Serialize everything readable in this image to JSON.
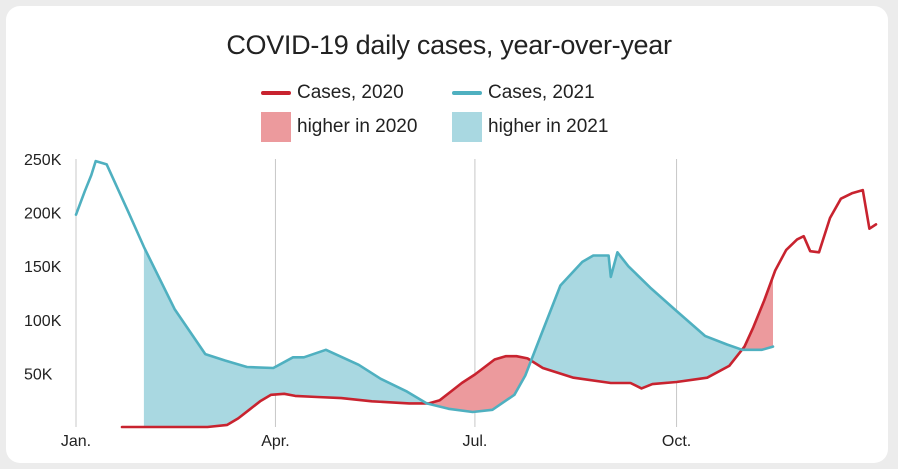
{
  "chart_data": {
    "type": "area",
    "title": "COVID-19 daily cases, year-over-year",
    "xlabel": "",
    "ylabel": "",
    "x_ticks": [
      "Jan.",
      "Apr.",
      "Jul.",
      "Oct."
    ],
    "y_ticks": [
      "50K",
      "100K",
      "150K",
      "200K",
      "250K"
    ],
    "ylim": [
      0,
      250000
    ],
    "grid": "vertical lines at quarter starts",
    "legend_position": "top-center",
    "legend": {
      "line_2020": "Cases, 2020",
      "line_2021": "Cases, 2021",
      "fill_2020": "higher in 2020",
      "fill_2021": "higher in 2021"
    },
    "colors": {
      "series_2020": "#c8232f",
      "series_2021": "#4fb0c0",
      "fill_2020": "#ec9a9d",
      "fill_2021": "#a9d8e1"
    },
    "series": [
      {
        "name": "Cases, 2020",
        "x": [
          "2020-01-22",
          "2020-02-01",
          "2020-02-15",
          "2020-03-01",
          "2020-03-10",
          "2020-03-15",
          "2020-03-20",
          "2020-03-25",
          "2020-03-30",
          "2020-04-05",
          "2020-04-10",
          "2020-04-20",
          "2020-05-01",
          "2020-05-15",
          "2020-06-01",
          "2020-06-10",
          "2020-06-15",
          "2020-06-20",
          "2020-06-25",
          "2020-07-01",
          "2020-07-10",
          "2020-07-15",
          "2020-07-20",
          "2020-07-25",
          "2020-08-01",
          "2020-08-15",
          "2020-09-01",
          "2020-09-10",
          "2020-09-15",
          "2020-09-20",
          "2020-10-01",
          "2020-10-15",
          "2020-10-25",
          "2020-11-01",
          "2020-11-05",
          "2020-11-10",
          "2020-11-15",
          "2020-11-20",
          "2020-11-25",
          "2020-11-28",
          "2020-12-01",
          "2020-12-05",
          "2020-12-10",
          "2020-12-15",
          "2020-12-20",
          "2020-12-25",
          "2020-12-28",
          "2020-12-31"
        ],
        "values": [
          0,
          0,
          0,
          0,
          2000,
          8000,
          16000,
          24000,
          30000,
          31000,
          29000,
          28000,
          27000,
          24000,
          22000,
          22000,
          25000,
          33000,
          41000,
          49000,
          63000,
          66000,
          66000,
          64000,
          55000,
          46000,
          41000,
          41000,
          36000,
          40000,
          42000,
          46000,
          57000,
          75000,
          93000,
          118000,
          146000,
          165000,
          175000,
          178000,
          164000,
          163000,
          195000,
          213000,
          218000,
          221000,
          185000,
          189000
        ]
      },
      {
        "name": "Cases, 2021",
        "x": [
          "2021-01-01",
          "2021-01-05",
          "2021-01-08",
          "2021-01-10",
          "2021-01-15",
          "2021-01-25",
          "2021-02-01",
          "2021-02-15",
          "2021-03-01",
          "2021-03-10",
          "2021-03-20",
          "2021-04-01",
          "2021-04-10",
          "2021-04-15",
          "2021-04-25",
          "2021-05-10",
          "2021-05-20",
          "2021-06-01",
          "2021-06-10",
          "2021-06-20",
          "2021-07-01",
          "2021-07-10",
          "2021-07-20",
          "2021-07-25",
          "2021-08-01",
          "2021-08-10",
          "2021-08-20",
          "2021-08-25",
          "2021-09-01",
          "2021-09-02",
          "2021-09-05",
          "2021-09-10",
          "2021-09-20",
          "2021-10-01",
          "2021-10-15",
          "2021-10-25",
          "2021-11-01",
          "2021-11-10",
          "2021-11-15"
        ],
        "values": [
          198000,
          220000,
          235000,
          248000,
          245000,
          200000,
          168000,
          110000,
          68000,
          62000,
          56000,
          55000,
          65000,
          65000,
          72000,
          58000,
          45000,
          33000,
          22000,
          17000,
          14000,
          16000,
          30000,
          48000,
          85000,
          132000,
          154000,
          160000,
          160000,
          140000,
          163000,
          150000,
          130000,
          110000,
          85000,
          77000,
          72000,
          72000,
          75000
        ]
      }
    ],
    "comparison_window": [
      "2021-02-01",
      "2021-11-15"
    ]
  }
}
